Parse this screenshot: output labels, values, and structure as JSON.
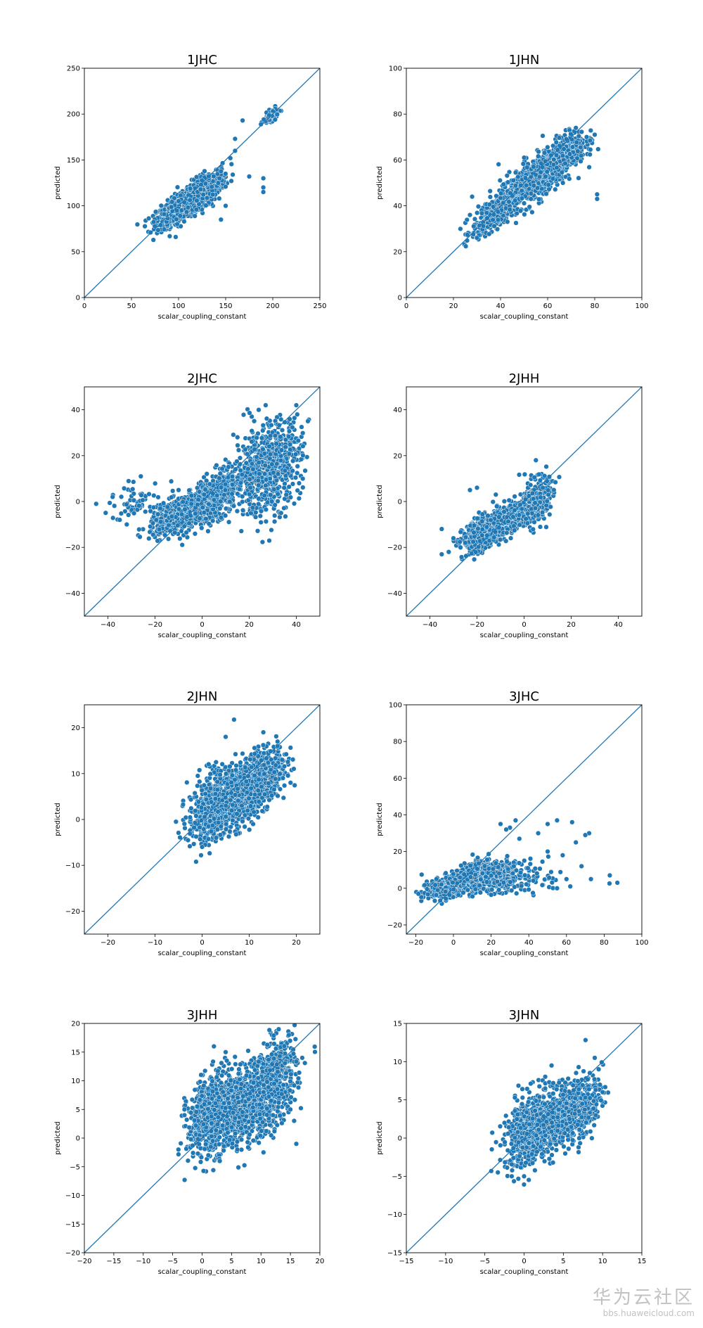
{
  "watermark": {
    "main": "华为云社区",
    "sub": "bbs.huaweicloud.com"
  },
  "colors": {
    "points": "#1f77b4",
    "point_edge": "#ffffff",
    "line": "#1f77b4",
    "axes": "#000000"
  },
  "chart_data": [
    {
      "type": "scatter",
      "title": "1JHC",
      "xlabel": "scalar_coupling_constant",
      "ylabel": "predicted",
      "xlim": [
        0,
        250
      ],
      "ylim": [
        0,
        250
      ],
      "xticks": [
        0,
        50,
        100,
        150,
        200,
        250
      ],
      "yticks": [
        0,
        50,
        100,
        150,
        200,
        250
      ],
      "reference_line": [
        [
          0,
          0
        ],
        [
          250,
          250
        ]
      ],
      "clusters": [
        {
          "center": [
            105,
            100
          ],
          "spread": [
            14,
            11
          ],
          "corr": 0.75,
          "n": 900
        },
        {
          "center": [
            130,
            120
          ],
          "spread": [
            10,
            10
          ],
          "corr": 0.6,
          "n": 300
        },
        {
          "center": [
            198,
            198
          ],
          "spread": [
            4,
            4
          ],
          "corr": 0.7,
          "n": 80
        }
      ],
      "points": [
        [
          160,
          160
        ],
        [
          155,
          152
        ],
        [
          175,
          132
        ],
        [
          190,
          130
        ],
        [
          190,
          120
        ],
        [
          190,
          115
        ],
        [
          150,
          100
        ],
        [
          168,
          193
        ],
        [
          160,
          173
        ],
        [
          145,
          85
        ]
      ]
    },
    {
      "type": "scatter",
      "title": "1JHN",
      "xlabel": "scalar_coupling_constant",
      "ylabel": "predicted",
      "xlim": [
        0,
        100
      ],
      "ylim": [
        0,
        100
      ],
      "xticks": [
        0,
        20,
        40,
        60,
        80,
        100
      ],
      "yticks": [
        0,
        20,
        40,
        60,
        80,
        100
      ],
      "reference_line": [
        [
          0,
          0
        ],
        [
          100,
          100
        ]
      ],
      "clusters": [
        {
          "center": [
            38,
            37
          ],
          "spread": [
            5,
            5
          ],
          "corr": 0.75,
          "n": 350
        },
        {
          "center": [
            55,
            52
          ],
          "spread": [
            8,
            7
          ],
          "corr": 0.75,
          "n": 700
        },
        {
          "center": [
            66,
            62
          ],
          "spread": [
            5,
            5
          ],
          "corr": 0.6,
          "n": 350
        }
      ],
      "points": [
        [
          81,
          43
        ],
        [
          81,
          45
        ],
        [
          27,
          36
        ],
        [
          30,
          26
        ],
        [
          50,
          61
        ],
        [
          80,
          71
        ],
        [
          72,
          74
        ]
      ]
    },
    {
      "type": "scatter",
      "title": "2JHC",
      "xlabel": "scalar_coupling_constant",
      "ylabel": "predicted",
      "xlim": [
        -50,
        50
      ],
      "ylim": [
        -50,
        50
      ],
      "xticks": [
        -40,
        -20,
        0,
        20,
        40
      ],
      "yticks": [
        -40,
        -20,
        0,
        20,
        40
      ],
      "reference_line": [
        [
          -50,
          -50
        ],
        [
          50,
          50
        ]
      ],
      "clusters": [
        {
          "center": [
            -10,
            -6
          ],
          "spread": [
            6,
            4
          ],
          "corr": 0.5,
          "n": 450
        },
        {
          "center": [
            5,
            2
          ],
          "spread": [
            6,
            6
          ],
          "corr": 0.6,
          "n": 600
        },
        {
          "center": [
            28,
            15
          ],
          "spread": [
            7,
            10
          ],
          "corr": 0.3,
          "n": 700
        },
        {
          "center": [
            -28,
            0
          ],
          "spread": [
            6,
            4
          ],
          "corr": 0.2,
          "n": 60
        }
      ],
      "points": [
        [
          -45,
          -1
        ],
        [
          -38,
          2
        ],
        [
          -35,
          -8
        ],
        [
          -32,
          -10
        ],
        [
          27,
          42
        ],
        [
          40,
          42
        ],
        [
          15,
          28
        ],
        [
          -10,
          5
        ]
      ]
    },
    {
      "type": "scatter",
      "title": "2JHH",
      "xlabel": "scalar_coupling_constant",
      "ylabel": "predicted",
      "xlim": [
        -50,
        50
      ],
      "ylim": [
        -50,
        50
      ],
      "xticks": [
        -40,
        -20,
        0,
        20,
        40
      ],
      "yticks": [
        -40,
        -20,
        0,
        20,
        40
      ],
      "reference_line": [
        [
          -50,
          -50
        ],
        [
          50,
          50
        ]
      ],
      "clusters": [
        {
          "center": [
            -18,
            -14
          ],
          "spread": [
            4,
            4
          ],
          "corr": 0.5,
          "n": 500
        },
        {
          "center": [
            -6,
            -7
          ],
          "spread": [
            5,
            4
          ],
          "corr": 0.6,
          "n": 450
        },
        {
          "center": [
            5,
            0
          ],
          "spread": [
            3,
            5
          ],
          "corr": 0.3,
          "n": 350
        }
      ],
      "points": [
        [
          -35,
          -23
        ],
        [
          -35,
          -12
        ],
        [
          -32,
          -22
        ],
        [
          -30,
          -16
        ],
        [
          -25,
          -18
        ],
        [
          5,
          18
        ],
        [
          -23,
          5
        ],
        [
          -20,
          6
        ],
        [
          -12,
          3
        ]
      ]
    },
    {
      "type": "scatter",
      "title": "2JHN",
      "xlabel": "scalar_coupling_constant",
      "ylabel": "predicted",
      "xlim": [
        -25,
        25
      ],
      "ylim": [
        -25,
        25
      ],
      "xticks": [
        -20,
        -10,
        0,
        10,
        20
      ],
      "yticks": [
        -20,
        -10,
        0,
        10,
        20
      ],
      "reference_line": [
        [
          -25,
          -25
        ],
        [
          25,
          25
        ]
      ],
      "clusters": [
        {
          "center": [
            2,
            3
          ],
          "spread": [
            2.5,
            4
          ],
          "corr": 0.4,
          "n": 500
        },
        {
          "center": [
            9,
            6
          ],
          "spread": [
            3.5,
            4
          ],
          "corr": 0.5,
          "n": 700
        },
        {
          "center": [
            14,
            10
          ],
          "spread": [
            2,
            3
          ],
          "corr": 0.4,
          "n": 250
        }
      ],
      "points": [
        [
          5,
          18
        ],
        [
          13,
          19
        ],
        [
          0,
          -6
        ],
        [
          3,
          -4
        ],
        [
          16,
          16
        ],
        [
          17,
          13
        ]
      ]
    },
    {
      "type": "scatter",
      "title": "3JHC",
      "xlabel": "scalar_coupling_constant",
      "ylabel": "predicted",
      "xlim": [
        -25,
        100
      ],
      "ylim": [
        -25,
        100
      ],
      "xticks": [
        -20,
        0,
        20,
        40,
        60,
        80,
        100
      ],
      "yticks": [
        -20,
        0,
        20,
        40,
        60,
        80,
        100
      ],
      "reference_line": [
        [
          -25,
          -25
        ],
        [
          100,
          100
        ]
      ],
      "clusters": [
        {
          "center": [
            -5,
            0
          ],
          "spread": [
            6,
            3
          ],
          "corr": 0.4,
          "n": 250
        },
        {
          "center": [
            8,
            6
          ],
          "spread": [
            6,
            4
          ],
          "corr": 0.6,
          "n": 600
        },
        {
          "center": [
            22,
            6
          ],
          "spread": [
            8,
            4
          ],
          "corr": 0.2,
          "n": 400
        },
        {
          "center": [
            40,
            5
          ],
          "spread": [
            10,
            5
          ],
          "corr": 0.1,
          "n": 50
        }
      ],
      "points": [
        [
          55,
          37
        ],
        [
          63,
          36
        ],
        [
          72,
          30
        ],
        [
          70,
          29
        ],
        [
          87,
          3
        ],
        [
          83,
          7
        ],
        [
          68,
          12
        ],
        [
          65,
          25
        ],
        [
          50,
          35
        ],
        [
          45,
          30
        ],
        [
          33,
          37
        ],
        [
          30,
          33
        ],
        [
          28,
          32
        ],
        [
          25,
          35
        ],
        [
          35,
          27
        ],
        [
          60,
          5
        ],
        [
          62,
          1
        ],
        [
          55,
          0
        ],
        [
          73,
          5
        ],
        [
          50,
          20
        ],
        [
          58,
          18
        ]
      ]
    },
    {
      "type": "scatter",
      "title": "3JHH",
      "xlabel": "scalar_coupling_constant",
      "ylabel": "predicted",
      "xlim": [
        -20,
        20
      ],
      "ylim": [
        -20,
        20
      ],
      "xticks": [
        -20,
        -15,
        -10,
        -5,
        0,
        5,
        10,
        15,
        20
      ],
      "yticks": [
        -20,
        -15,
        -10,
        -5,
        0,
        5,
        10,
        15,
        20
      ],
      "reference_line": [
        [
          -20,
          -20
        ],
        [
          20,
          20
        ]
      ],
      "clusters": [
        {
          "center": [
            1.5,
            4
          ],
          "spread": [
            2,
            3.5
          ],
          "corr": 0.3,
          "n": 600
        },
        {
          "center": [
            7,
            6
          ],
          "spread": [
            2.5,
            3.5
          ],
          "corr": 0.4,
          "n": 600
        },
        {
          "center": [
            12,
            9
          ],
          "spread": [
            2,
            4
          ],
          "corr": 0.4,
          "n": 550
        }
      ],
      "points": [
        [
          17,
          14
        ],
        [
          16,
          -1
        ],
        [
          13,
          19
        ],
        [
          4,
          15
        ],
        [
          -3,
          5
        ],
        [
          -3,
          4
        ],
        [
          2,
          16
        ],
        [
          3,
          -4
        ],
        [
          15,
          5
        ]
      ]
    },
    {
      "type": "scatter",
      "title": "3JHN",
      "xlabel": "scalar_coupling_constant",
      "ylabel": "predicted",
      "xlim": [
        -15,
        15
      ],
      "ylim": [
        -15,
        15
      ],
      "xticks": [
        -15,
        -10,
        -5,
        0,
        5,
        10,
        15
      ],
      "yticks": [
        -15,
        -10,
        -5,
        0,
        5,
        10,
        15
      ],
      "reference_line": [
        [
          -15,
          -15
        ],
        [
          15,
          15
        ]
      ],
      "clusters": [
        {
          "center": [
            0.5,
            1
          ],
          "spread": [
            1.5,
            2.5
          ],
          "corr": 0.4,
          "n": 450
        },
        {
          "center": [
            4,
            2.5
          ],
          "spread": [
            2,
            2.2
          ],
          "corr": 0.4,
          "n": 600
        },
        {
          "center": [
            7,
            4
          ],
          "spread": [
            1.5,
            2
          ],
          "corr": 0.4,
          "n": 250
        }
      ],
      "points": [
        [
          9,
          10.5
        ],
        [
          3.5,
          9.5
        ],
        [
          0,
          -5
        ],
        [
          10,
          6
        ],
        [
          9.5,
          9
        ],
        [
          -2.5,
          2
        ]
      ]
    }
  ]
}
